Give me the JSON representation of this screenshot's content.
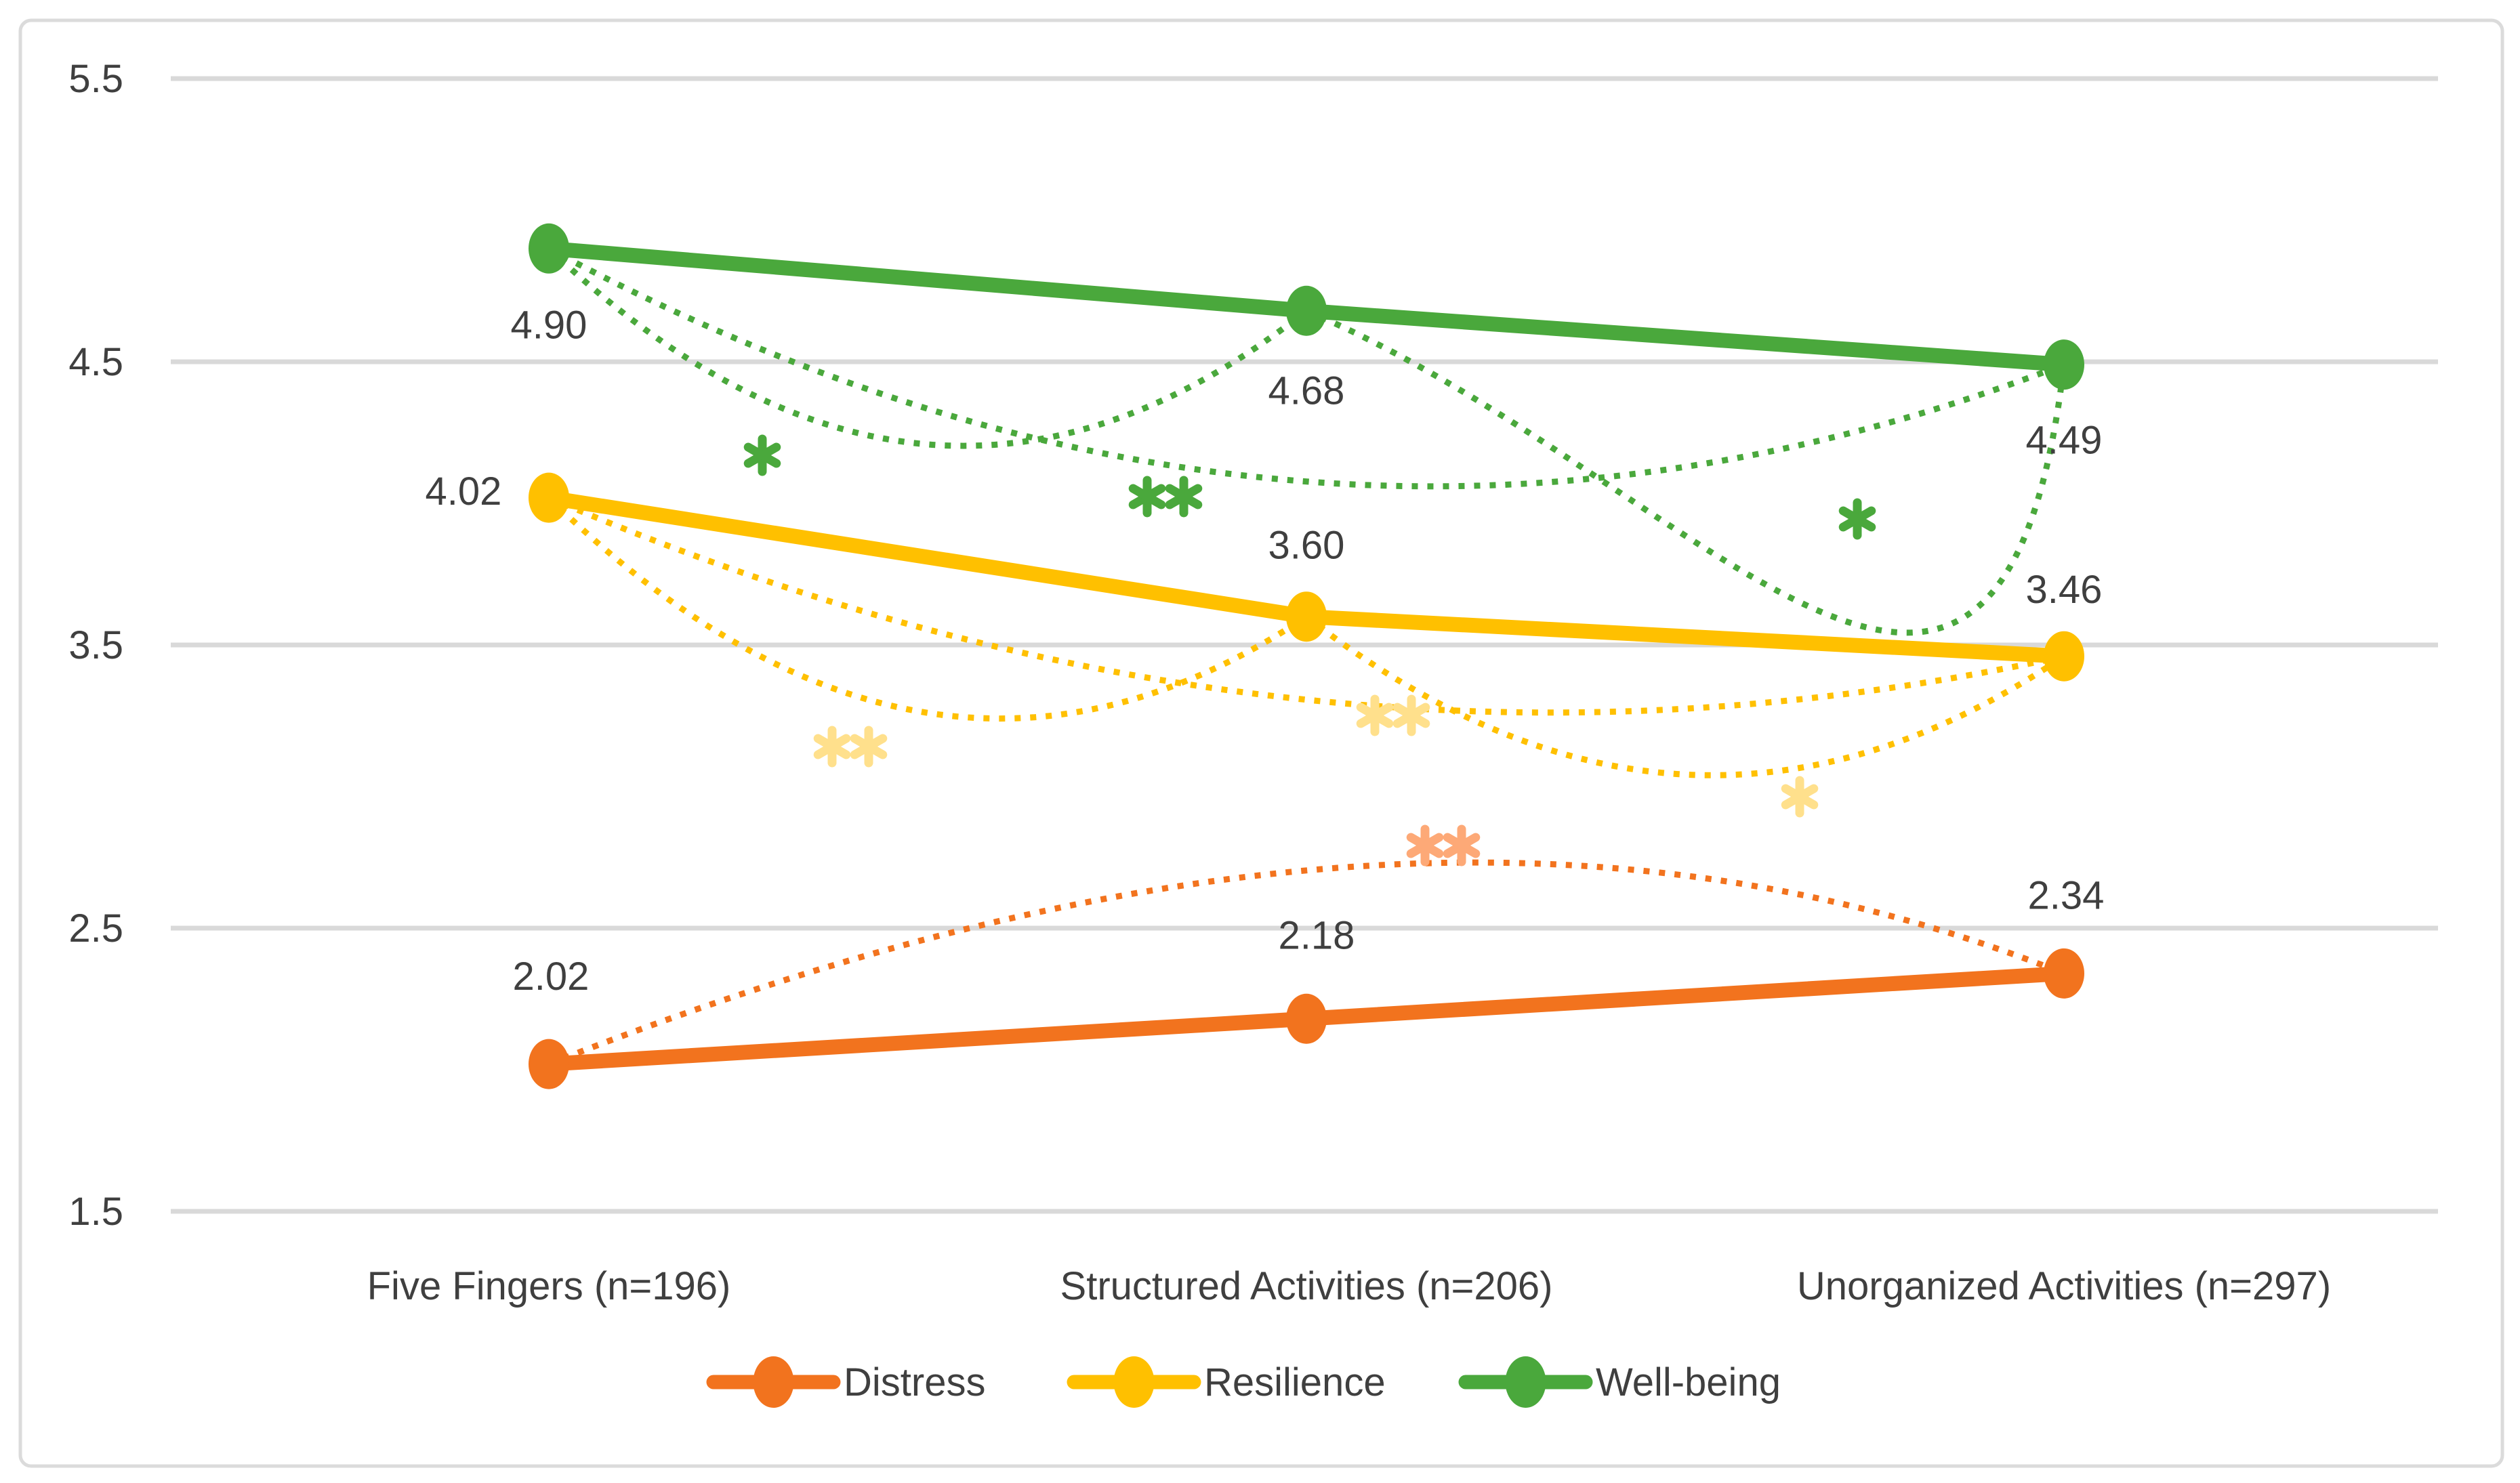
{
  "chart_data": {
    "type": "line",
    "title": "",
    "categories": [
      "Five Fingers (n=196)",
      "Structured Activities (n=206)",
      "Unorganized Activities (n=297)"
    ],
    "series": [
      {
        "name": "Distress",
        "color": "#F2731E",
        "values": [
          2.02,
          2.18,
          2.34
        ],
        "labels": [
          "2.02",
          "2.18",
          "2.34"
        ]
      },
      {
        "name": "Resilience",
        "color": "#FFC000",
        "values": [
          4.02,
          3.6,
          3.46
        ],
        "labels": [
          "4.02",
          "3.60",
          "3.46"
        ]
      },
      {
        "name": "Well-being",
        "color": "#4AA83C",
        "values": [
          4.9,
          4.68,
          4.49
        ],
        "labels": [
          "4.90",
          "4.68",
          "4.49"
        ]
      }
    ],
    "yticks": [
      "5.5",
      "4.5",
      "3.5",
      "2.5",
      "1.5"
    ],
    "ylim": [
      1.5,
      5.5
    ],
    "grid": true,
    "legend_position": "bottom",
    "comparisons": [
      {
        "series": "Distress",
        "from": 0,
        "to": 2,
        "sig": "**",
        "sig_color": "#FDA977"
      },
      {
        "series": "Resilience",
        "from": 0,
        "to": 1,
        "sig": "**",
        "sig_color": "#FFE08C"
      },
      {
        "series": "Resilience",
        "from": 0,
        "to": 2,
        "sig": "**",
        "sig_color": "#FFE08C"
      },
      {
        "series": "Resilience",
        "from": 1,
        "to": 2,
        "sig": "*",
        "sig_color": "#FFE08C"
      },
      {
        "series": "Well-being",
        "from": 0,
        "to": 1,
        "sig": "*",
        "sig_color": "#4AA83C"
      },
      {
        "series": "Well-being",
        "from": 0,
        "to": 2,
        "sig": "**",
        "sig_color": "#4AA83C"
      },
      {
        "series": "Well-being",
        "from": 1,
        "to": 2,
        "sig": "*",
        "sig_color": "#4AA83C"
      }
    ],
    "colors": {
      "gridline": "#D9D9D9",
      "border": "#DBDBDB",
      "text": "#3F3F3F"
    }
  }
}
